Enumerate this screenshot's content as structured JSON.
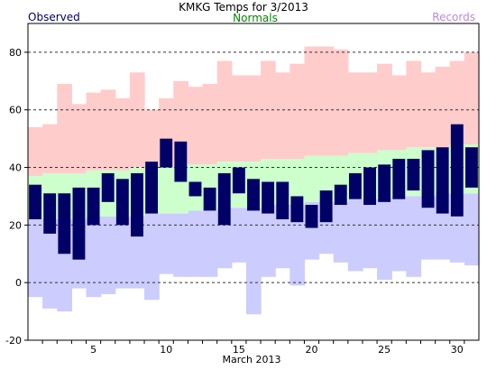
{
  "chart_data": {
    "type": "bar",
    "title": "KMKG Temps for 3/2013",
    "xlabel": "March 2013",
    "ylabel": "",
    "ylim": [
      -20,
      90
    ],
    "xlim": [
      0.5,
      31.5
    ],
    "y_ticks": [
      -20,
      0,
      20,
      40,
      60,
      80
    ],
    "x_ticks": [
      5,
      10,
      15,
      20,
      25,
      30
    ],
    "grid": "horizontal dashed",
    "legend": {
      "observed": "Observed",
      "normals": "Normals",
      "records": "Records"
    },
    "days": [
      1,
      2,
      3,
      4,
      5,
      6,
      7,
      8,
      9,
      10,
      11,
      12,
      13,
      14,
      15,
      16,
      17,
      18,
      19,
      20,
      21,
      22,
      23,
      24,
      25,
      26,
      27,
      28,
      29,
      30,
      31
    ],
    "series": [
      {
        "name": "Records",
        "color": "#ffcccc",
        "high": [
          54,
          55,
          69,
          62,
          66,
          67,
          64,
          73,
          60,
          64,
          70,
          68,
          69,
          77,
          72,
          72,
          77,
          73,
          76,
          82,
          82,
          81,
          73,
          73,
          76,
          72,
          77,
          73,
          75,
          77,
          80
        ],
        "low": [
          -5,
          -9,
          -10,
          -2,
          -5,
          -4,
          -2,
          -2,
          -6,
          3,
          2,
          2,
          2,
          5,
          7,
          -11,
          2,
          5,
          -1,
          8,
          10,
          7,
          4,
          5,
          1,
          4,
          2,
          8,
          8,
          7,
          6
        ]
      },
      {
        "name": "Normals",
        "color": "#ccffcc",
        "high": [
          37,
          38,
          38,
          38,
          39,
          39,
          39,
          40,
          40,
          40,
          41,
          41,
          41,
          42,
          42,
          42,
          43,
          43,
          43,
          44,
          44,
          44,
          45,
          45,
          46,
          46,
          47,
          47,
          47,
          48,
          48
        ],
        "low": [
          22,
          22,
          22,
          22,
          23,
          23,
          23,
          23,
          24,
          24,
          24,
          25,
          25,
          26,
          26,
          26,
          27,
          27,
          27,
          28,
          28,
          28,
          29,
          29,
          29,
          30,
          30,
          30,
          31,
          31,
          31
        ]
      },
      {
        "name": "Observed",
        "color": "#000066",
        "high": [
          34,
          31,
          31,
          33,
          33,
          38,
          36,
          38,
          42,
          50,
          49,
          35,
          33,
          38,
          40,
          36,
          35,
          35,
          30,
          27,
          32,
          34,
          38,
          40,
          41,
          43,
          43,
          46,
          47,
          55,
          47
        ],
        "low": [
          22,
          17,
          10,
          8,
          20,
          28,
          20,
          16,
          24,
          40,
          35,
          30,
          25,
          20,
          31,
          25,
          24,
          22,
          21,
          19,
          21,
          27,
          29,
          27,
          28,
          29,
          32,
          26,
          24,
          23,
          33
        ]
      }
    ]
  }
}
